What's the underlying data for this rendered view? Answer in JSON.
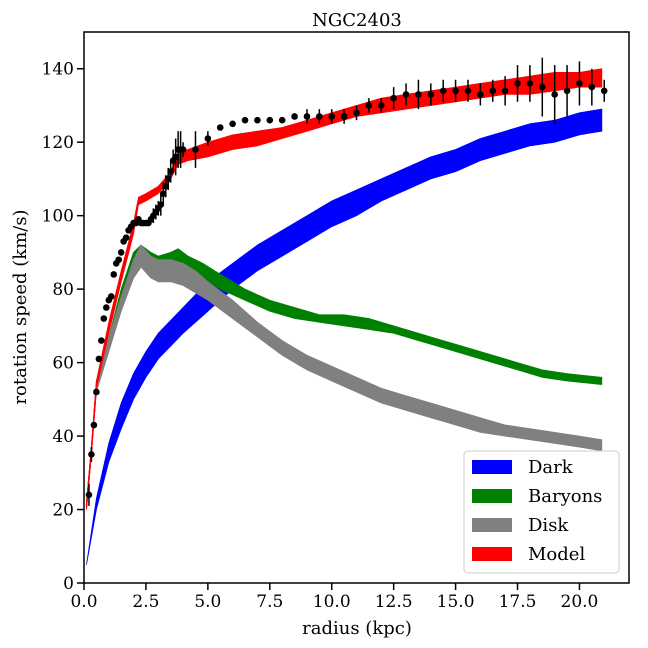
{
  "chart_data": {
    "type": "line",
    "title": "NGC2403",
    "xlabel": "radius (kpc)",
    "ylabel": "rotation speed (km/s)",
    "xlim": [
      0,
      22
    ],
    "ylim": [
      0,
      150
    ],
    "xticks": [
      0.0,
      2.5,
      5.0,
      7.5,
      10.0,
      12.5,
      15.0,
      17.5,
      20.0
    ],
    "xtick_labels": [
      "0.0",
      "2.5",
      "5.0",
      "7.5",
      "10.0",
      "12.5",
      "15.0",
      "17.5",
      "20.0"
    ],
    "yticks": [
      0,
      20,
      40,
      60,
      80,
      100,
      120,
      140
    ],
    "ytick_labels": [
      "0",
      "20",
      "40",
      "60",
      "80",
      "100",
      "120",
      "140"
    ],
    "legend_position": "lower-right",
    "series": [
      {
        "name": "Dark",
        "color": "#0000ff",
        "x": [
          0.1,
          0.5,
          1.0,
          1.5,
          2.0,
          2.5,
          3.0,
          4.0,
          5.0,
          6.0,
          7.0,
          8.0,
          9.0,
          10.0,
          11.0,
          12.0,
          13.0,
          14.0,
          15.0,
          16.0,
          17.0,
          18.0,
          19.0,
          20.0,
          20.9
        ],
        "lower": [
          5,
          20,
          33,
          42,
          50,
          56,
          61,
          68,
          74,
          80,
          85,
          89,
          93,
          97,
          100,
          104,
          107,
          110,
          112,
          115,
          117,
          119,
          120,
          122,
          123
        ],
        "upper": [
          5,
          23,
          38,
          49,
          57,
          63,
          68,
          75,
          82,
          87,
          92,
          96,
          100,
          104,
          107,
          110,
          113,
          116,
          118,
          121,
          123,
          125,
          126,
          128,
          129
        ]
      },
      {
        "name": "Baryons",
        "color": "#008000",
        "x": [
          0.1,
          0.3,
          0.5,
          1.0,
          1.5,
          2.0,
          2.3,
          2.7,
          3.0,
          3.5,
          3.8,
          4.2,
          4.8,
          5.5,
          6.5,
          7.5,
          8.5,
          9.5,
          10.5,
          11.5,
          12.5,
          13.5,
          14.5,
          15.5,
          16.5,
          17.5,
          18.5,
          19.5,
          20.9
        ],
        "lower": [
          20,
          35,
          53,
          65,
          77,
          87,
          89,
          87,
          87,
          88,
          87,
          85,
          83,
          80,
          77,
          74,
          72,
          71,
          70,
          69,
          68,
          66,
          64,
          62,
          60,
          58,
          56,
          55,
          54
        ],
        "upper": [
          22,
          37,
          55,
          67,
          80,
          90,
          92,
          90,
          89,
          90,
          91,
          89,
          87,
          84,
          80,
          77,
          75,
          73,
          73,
          72,
          70,
          68,
          66,
          64,
          62,
          60,
          58,
          57,
          56
        ]
      },
      {
        "name": "Disk",
        "color": "#808080",
        "x": [
          0.1,
          0.3,
          0.5,
          1.0,
          1.5,
          2.0,
          2.3,
          2.7,
          3.0,
          3.5,
          4.0,
          4.5,
          5.0,
          6.0,
          7.0,
          8.0,
          9.0,
          10.0,
          11.0,
          12.0,
          13.0,
          14.0,
          15.0,
          16.0,
          17.0,
          18.0,
          19.0,
          20.0,
          20.9
        ],
        "lower": [
          20,
          35,
          52,
          63,
          74,
          83,
          86,
          83,
          82,
          82,
          81,
          79,
          77,
          72,
          67,
          62,
          58,
          55,
          52,
          49,
          47,
          45,
          43,
          41,
          40,
          39,
          38,
          37,
          36
        ],
        "upper": [
          22,
          37,
          55,
          67,
          78,
          88,
          92,
          89,
          88,
          88,
          87,
          85,
          82,
          77,
          71,
          66,
          62,
          59,
          56,
          53,
          51,
          49,
          47,
          45,
          43,
          42,
          41,
          40,
          39
        ]
      },
      {
        "name": "Model",
        "color": "#ff0000",
        "x": [
          0.1,
          0.3,
          0.5,
          1.0,
          1.5,
          2.0,
          2.2,
          2.5,
          3.0,
          3.5,
          3.8,
          4.2,
          5.0,
          6.0,
          7.0,
          8.0,
          9.0,
          10.0,
          11.0,
          12.0,
          13.0,
          14.0,
          15.0,
          16.0,
          17.0,
          18.0,
          19.0,
          20.0,
          20.9
        ],
        "lower": [
          20,
          35,
          53,
          68,
          82,
          95,
          103,
          104,
          106,
          110,
          114,
          115,
          116,
          118,
          119,
          121,
          123,
          125,
          127,
          128,
          129,
          130,
          131,
          132,
          133,
          133,
          134,
          135,
          135
        ],
        "upper": [
          22,
          37,
          55,
          71,
          85,
          98,
          105,
          106,
          108,
          112,
          117,
          118,
          120,
          122,
          123,
          124,
          126,
          128,
          130,
          132,
          133,
          134,
          135,
          136,
          137,
          138,
          139,
          139,
          140
        ]
      }
    ],
    "observed": {
      "name": "observations",
      "color": "#000000",
      "x": [
        0.2,
        0.3,
        0.4,
        0.5,
        0.6,
        0.7,
        0.8,
        0.9,
        1.0,
        1.1,
        1.2,
        1.3,
        1.4,
        1.5,
        1.6,
        1.7,
        1.8,
        1.9,
        2.0,
        2.1,
        2.2,
        2.3,
        2.4,
        2.5,
        2.6,
        2.7,
        2.8,
        2.9,
        3.0,
        3.1,
        3.2,
        3.3,
        3.4,
        3.5,
        3.6,
        3.7,
        3.8,
        3.9,
        4.0,
        4.5,
        5.0,
        5.5,
        6.0,
        6.5,
        7.0,
        7.5,
        8.0,
        8.5,
        9.0,
        9.5,
        10.0,
        10.5,
        11.0,
        11.5,
        12.0,
        12.5,
        13.0,
        13.5,
        14.0,
        14.5,
        15.0,
        15.5,
        16.0,
        16.5,
        17.0,
        17.5,
        18.0,
        18.5,
        19.0,
        19.5,
        20.0,
        20.5,
        21.0
      ],
      "y": [
        24,
        35,
        43,
        52,
        61,
        66,
        72,
        75,
        77,
        78,
        84,
        87,
        88,
        90,
        93,
        94,
        96,
        97,
        98,
        98,
        99,
        98,
        98,
        98,
        98,
        99,
        100,
        101,
        102,
        103,
        106,
        108,
        110,
        112,
        115,
        116,
        118,
        118,
        118,
        118,
        121,
        124,
        125,
        126,
        126,
        126,
        126,
        127,
        127,
        127,
        127,
        127,
        128,
        130,
        130,
        132,
        133,
        133,
        133,
        134,
        134,
        134,
        133,
        134,
        134,
        136,
        136,
        135,
        133,
        134,
        136,
        135,
        134
      ],
      "err": [
        3,
        2,
        1,
        1,
        1,
        1,
        1,
        1,
        1,
        1,
        1,
        1,
        1,
        1,
        1,
        1,
        1,
        1,
        1,
        1,
        1,
        1,
        1,
        1,
        1,
        1,
        2,
        2,
        2,
        3,
        3,
        3,
        3,
        3,
        3,
        5,
        5,
        5,
        2,
        5,
        2,
        1,
        1,
        1,
        1,
        1,
        1,
        1,
        2,
        2,
        2,
        2,
        2,
        2,
        2,
        3,
        3,
        4,
        3,
        3,
        3,
        3,
        3,
        3,
        4,
        5,
        5,
        8,
        8,
        7,
        6,
        5,
        3
      ]
    }
  }
}
